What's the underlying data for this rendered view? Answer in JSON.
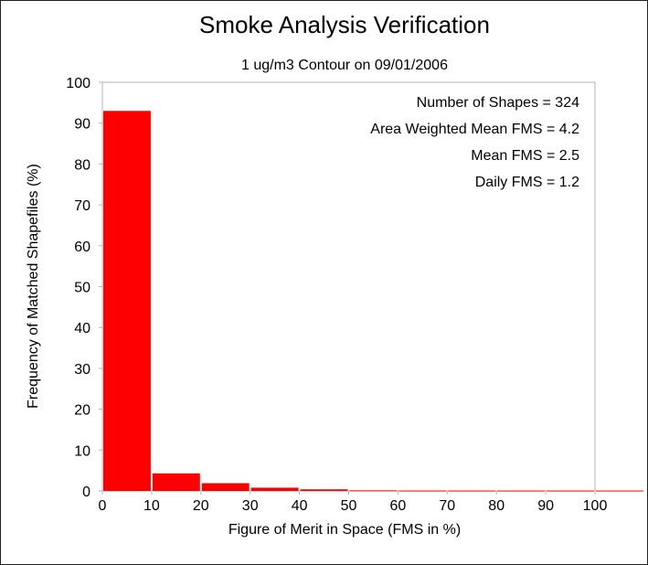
{
  "chart_data": {
    "type": "bar",
    "title": "Smoke Analysis Verification",
    "subtitle": "1 ug/m3 Contour on 09/01/2006",
    "xlabel": "Figure of Merit in Space (FMS in %)",
    "ylabel": "Frequency of Matched Shapefiles (%)",
    "xlim": [
      0,
      100
    ],
    "ylim": [
      0,
      100
    ],
    "x_ticks": [
      "0",
      "10",
      "20",
      "30",
      "40",
      "50",
      "60",
      "70",
      "80",
      "90",
      "100"
    ],
    "y_ticks": [
      "0",
      "10",
      "20",
      "30",
      "40",
      "50",
      "60",
      "70",
      "80",
      "90",
      "100"
    ],
    "bins": [
      [
        0,
        10
      ],
      [
        10,
        20
      ],
      [
        20,
        30
      ],
      [
        30,
        40
      ],
      [
        40,
        50
      ],
      [
        50,
        60
      ],
      [
        60,
        70
      ],
      [
        70,
        80
      ],
      [
        80,
        90
      ],
      [
        90,
        100
      ],
      [
        100,
        110
      ]
    ],
    "values": [
      93,
      4.3,
      1.9,
      0.8,
      0.4,
      0.15,
      0.1,
      0.1,
      0.1,
      0.1,
      0.1
    ],
    "bar_color": "#ff0000",
    "grid": false,
    "annotations": [
      "Number of Shapes = 324",
      "Area Weighted Mean FMS = 4.2",
      "Mean FMS = 2.5",
      "Daily FMS = 1.2"
    ]
  }
}
